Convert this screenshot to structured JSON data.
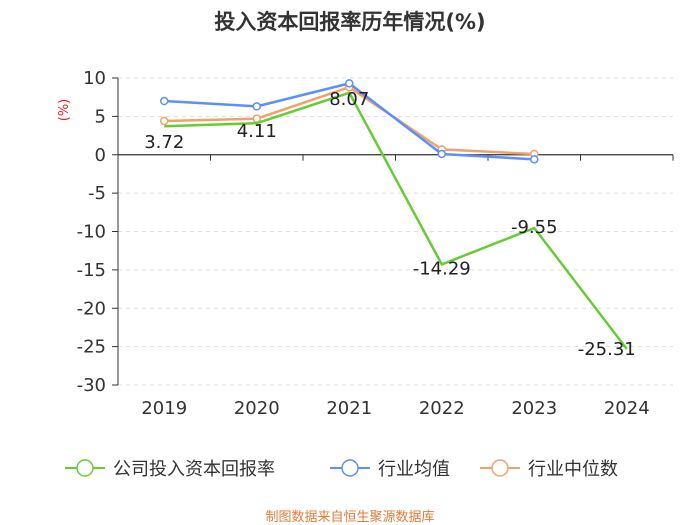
{
  "chart_data": {
    "type": "line",
    "title": "投入资本回报率历年情况(%)",
    "ylabel": "(%)",
    "xlabel": "",
    "categories": [
      "2019",
      "2020",
      "2021",
      "2022",
      "2023",
      "2024"
    ],
    "ylim": [
      -30,
      10
    ],
    "yticks": [
      10,
      5,
      0,
      -5,
      -10,
      -15,
      -20,
      -25,
      -30
    ],
    "grid": true,
    "legend_position": "bottom",
    "series": [
      {
        "name": "公司投入资本回报率",
        "color": "#66cc33",
        "values": [
          3.72,
          4.11,
          8.07,
          -14.29,
          -9.55,
          -25.31
        ],
        "labels": [
          "3.72",
          "4.11",
          "8.07",
          "-14.29",
          "-9.55",
          "-25.31"
        ]
      },
      {
        "name": "行业均值",
        "color": "#5b8ff9",
        "values": [
          7.0,
          6.3,
          9.3,
          0.1,
          -0.6,
          null
        ]
      },
      {
        "name": "行业中位数",
        "color": "#f4a06b",
        "values": [
          4.4,
          4.7,
          8.8,
          0.7,
          0.1,
          null
        ]
      }
    ]
  },
  "footer": {
    "source": "制图数据来自恒生聚源数据库",
    "source_color": "#e07b39"
  },
  "colors": {
    "ylabel": "#e02020",
    "axis": "#333333",
    "grid": "#dddddd"
  }
}
